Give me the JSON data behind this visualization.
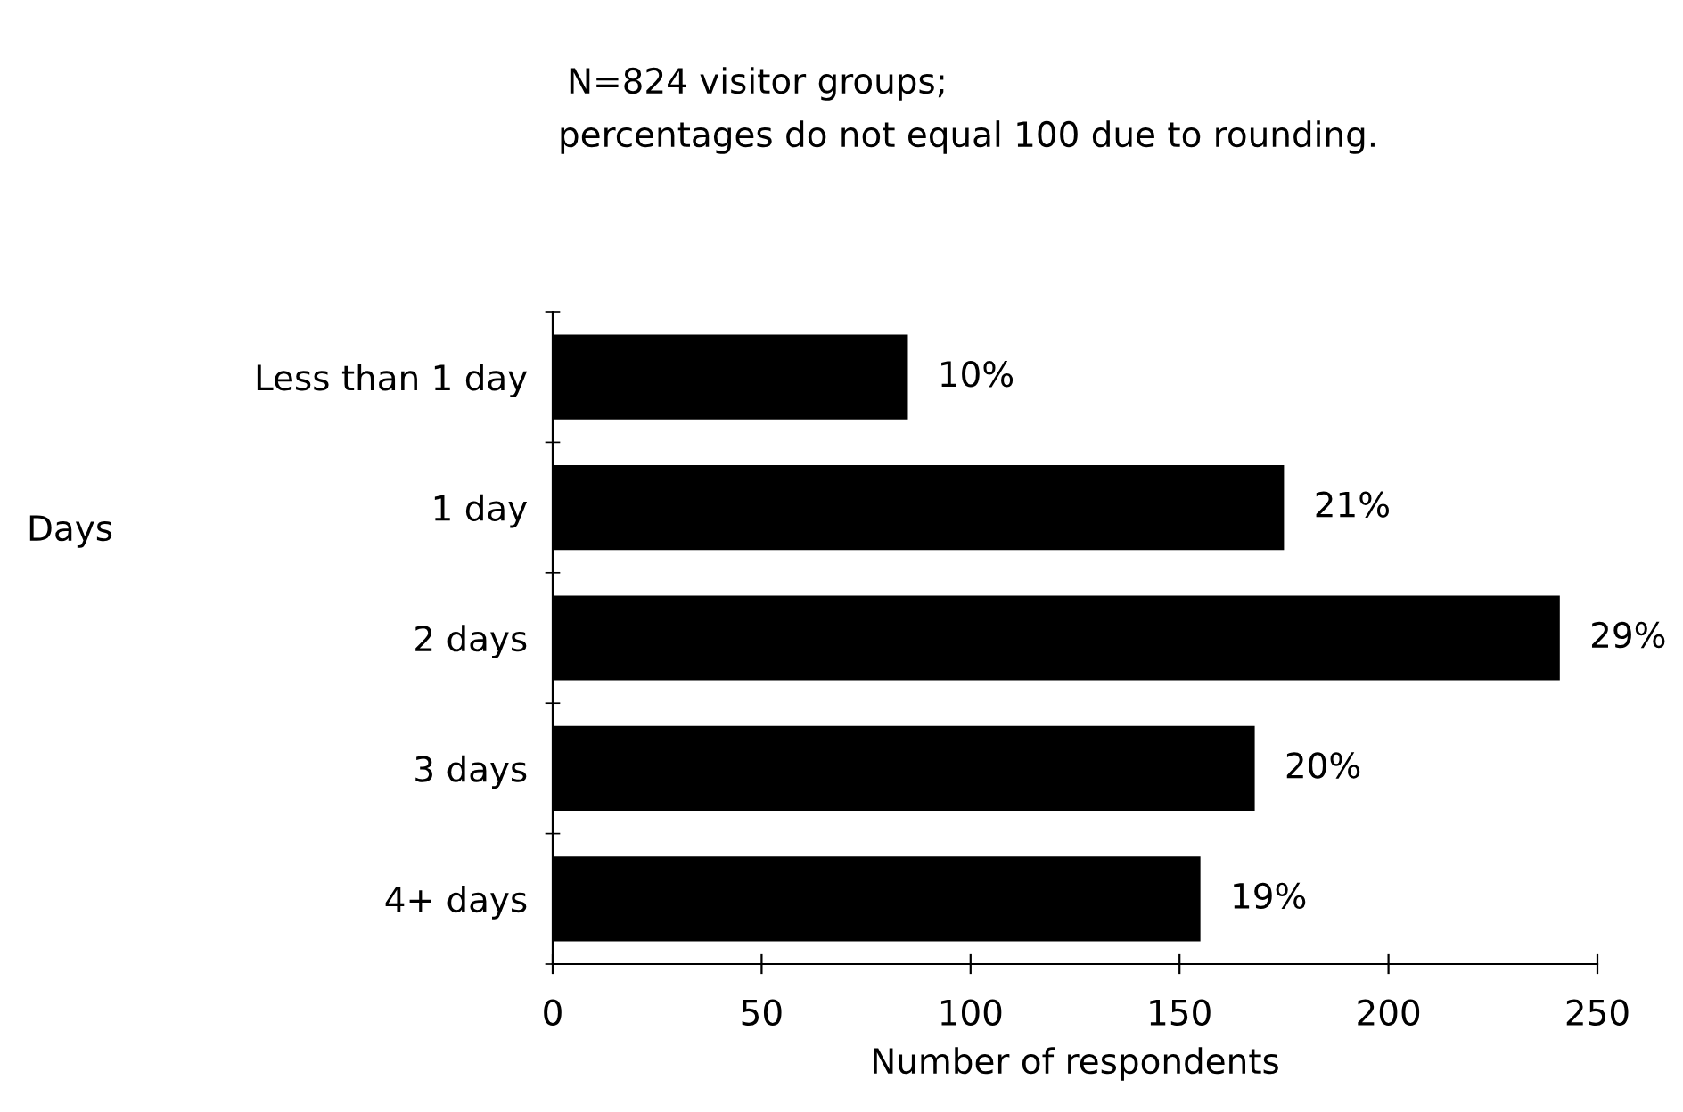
{
  "chart_data": {
    "type": "bar",
    "orientation": "horizontal",
    "title": "N=824 visitor groups;",
    "subtitle": "percentages do not equal 100 due to rounding.",
    "xlabel": "Number of respondents",
    "ylabel": "Days",
    "categories": [
      "Less than 1 day",
      "1 day",
      "2 days",
      "3 days",
      "4+ days"
    ],
    "values": [
      85,
      175,
      241,
      168,
      155
    ],
    "color": "#000000",
    "annotations": [
      {
        "text": "10%",
        "x": 85,
        "y": "Less than 1 day"
      },
      {
        "text": "21%",
        "x": 175,
        "y": "1 day"
      },
      {
        "text": "29%",
        "x": 241,
        "y": "2 days"
      },
      {
        "text": "20%",
        "x": 168,
        "y": "3 days"
      },
      {
        "text": "19%",
        "x": 155,
        "y": "4+ days"
      }
    ],
    "xlim": [
      0,
      250
    ],
    "xticks": [
      0,
      50,
      100,
      150,
      200,
      250
    ],
    "grid": false,
    "legend": false
  }
}
